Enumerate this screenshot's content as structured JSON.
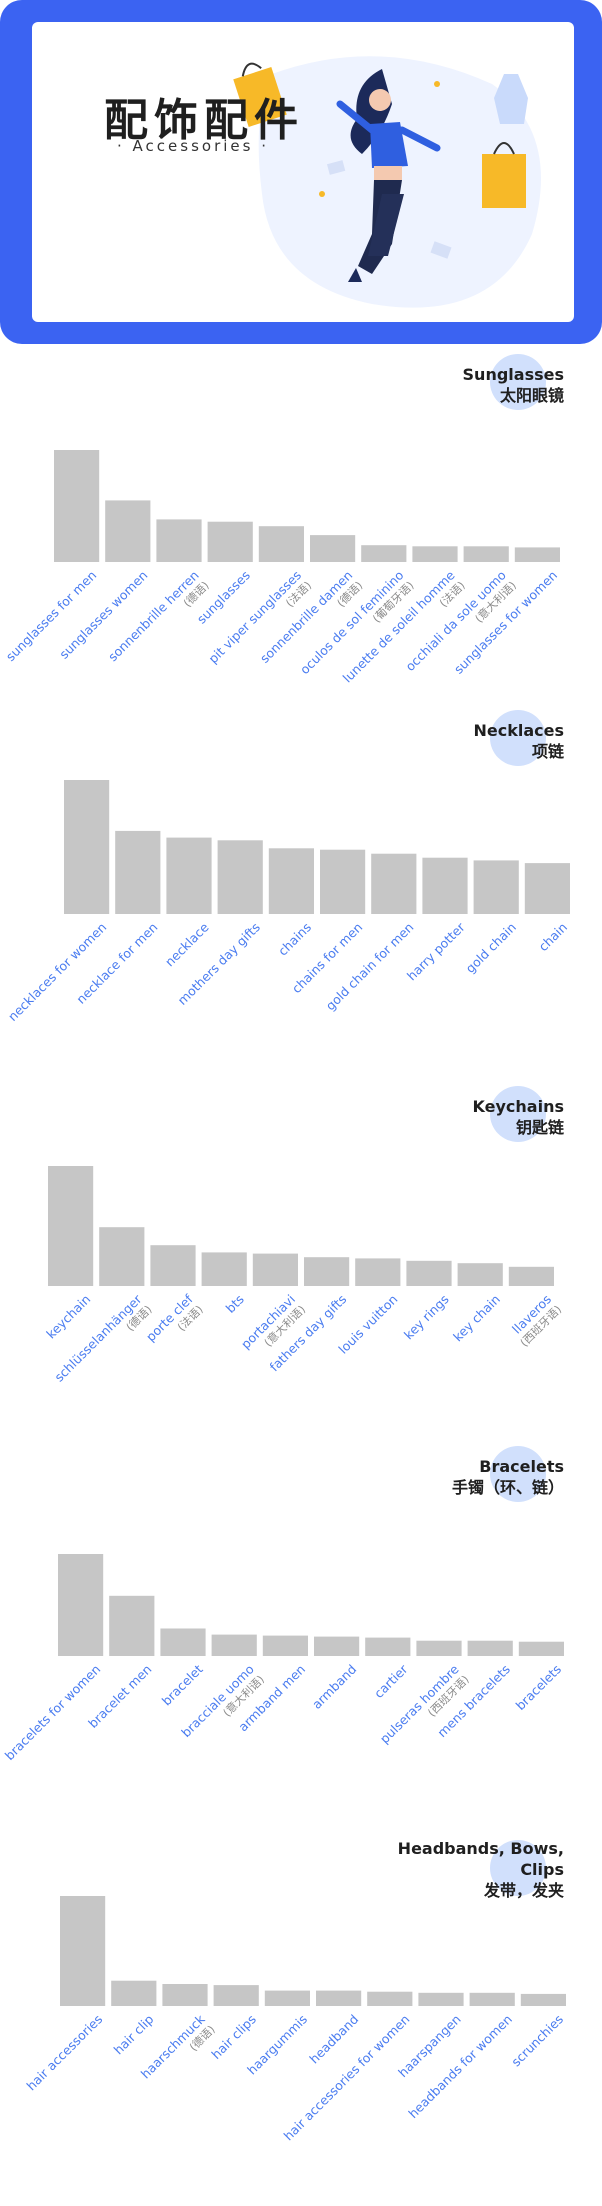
{
  "banner": {
    "title": "配饰配件",
    "subtitle": "· Accessories ·",
    "accent_color": "#3b63f2"
  },
  "chart_data": [
    {
      "type": "bar",
      "title": "Sunglasses\n太阳眼镜",
      "categories": [
        "sunglasses for men",
        "sunglasses women",
        "sonnenbrille herren",
        "sunglasses",
        "pit viper sunglasses",
        "sonnenbrille damen",
        "oculos de sol feminino",
        "lunette de soleil homme",
        "occhiali da sole uomo",
        "sunglasses for women"
      ],
      "notes": [
        "",
        "",
        "(德语)",
        "",
        "(法语)",
        "(德语)",
        "(葡萄牙语)",
        "(法语)",
        "(意大利语)",
        ""
      ],
      "values": [
        100,
        55,
        38,
        36,
        32,
        24,
        15,
        14,
        14,
        13
      ]
    },
    {
      "type": "bar",
      "title": "Necklaces\n项链",
      "categories": [
        "necklaces for women",
        "necklace for men",
        "necklace",
        "mothers day gifts",
        "chains",
        "chains for men",
        "gold chain for men",
        "harry potter",
        "gold chain",
        "chain"
      ],
      "notes": [
        "",
        "",
        "",
        "",
        "",
        "",
        "",
        "",
        "",
        ""
      ],
      "values": [
        100,
        62,
        57,
        55,
        49,
        48,
        45,
        42,
        40,
        38
      ]
    },
    {
      "type": "bar",
      "title": "Keychains\n钥匙链",
      "categories": [
        "keychain",
        "schlüsselanhänger",
        "porte clef",
        "bts",
        "portachiavi",
        "fathers day gifts",
        "louis vuitton",
        "key rings",
        "key chain",
        "llaveros"
      ],
      "notes": [
        "",
        "(德语)",
        "(法语)",
        "",
        "(意大利语)",
        "",
        "",
        "",
        "",
        "(西班牙语)"
      ],
      "values": [
        100,
        49,
        34,
        28,
        27,
        24,
        23,
        21,
        19,
        16
      ]
    },
    {
      "type": "bar",
      "title": "Bracelets\n手镯（环、链）",
      "categories": [
        "bracelets for women",
        "bracelet men",
        "bracelet",
        "bracciale uomo",
        "armband men",
        "armband",
        "cartier",
        "pulseras hombre",
        "mens bracelets",
        "bracelets"
      ],
      "notes": [
        "",
        "",
        "",
        "(意大利语)",
        "",
        "",
        "",
        "(西班牙语)",
        "",
        ""
      ],
      "values": [
        100,
        59,
        27,
        21,
        20,
        19,
        18,
        15,
        15,
        14
      ]
    },
    {
      "type": "bar",
      "title": "Headbands, Bows,\nClips\n发带，发夹",
      "categories": [
        "hair accessories",
        "hair clip",
        "haarschmuck",
        "hair clips",
        "haargummis",
        "headband",
        "hair accessories for women",
        "haarspangen",
        "headbands for women",
        "scrunchies"
      ],
      "notes": [
        "",
        "",
        "(德语)",
        "",
        "",
        "",
        "",
        "",
        "",
        ""
      ],
      "values": [
        100,
        23,
        20,
        19,
        14,
        14,
        13,
        12,
        12,
        11
      ]
    }
  ]
}
